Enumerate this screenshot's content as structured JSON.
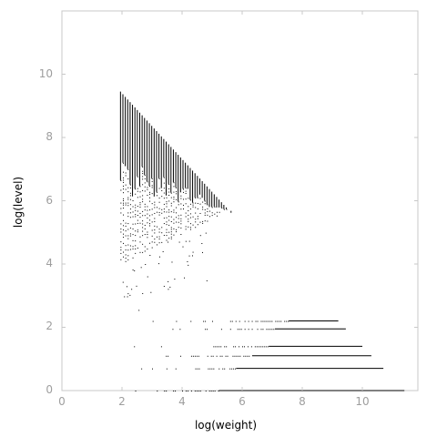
{
  "chart_data": {
    "type": "scatter",
    "title": "",
    "xlabel": "log(weight)",
    "ylabel": "log(level)",
    "xlim": [
      0,
      11.8
    ],
    "ylim": [
      0,
      12
    ],
    "xticks": [
      "0",
      "2",
      "4",
      "6",
      "8",
      "10"
    ],
    "yticks": [
      "0",
      "2",
      "4",
      "6",
      "8",
      "10"
    ],
    "grid": false,
    "legend": "none",
    "point_color": "#000000",
    "frame_color": "#c8c8c8",
    "tick_label_color": "#9e9e9e",
    "triangle_region": {
      "x_start": 1.95,
      "x_end": 5.65,
      "top_start": 9.45,
      "top_end": 5.6,
      "bottom_start": 4.0,
      "bottom_end": 5.75,
      "column_spacing": 0.08
    },
    "horizontal_bands": [
      {
        "y": 2.2,
        "x_start": 2.6,
        "x_end": 9.2
      },
      {
        "y": 1.95,
        "x_start": 2.3,
        "x_end": 9.45
      },
      {
        "y": 1.4,
        "x_start": 2.4,
        "x_end": 10.0
      },
      {
        "y": 1.1,
        "x_start": 2.2,
        "x_end": 10.3
      },
      {
        "y": 0.7,
        "x_start": 2.1,
        "x_end": 10.7
      },
      {
        "y": 0.0,
        "x_start": 1.9,
        "x_end": 11.4
      }
    ]
  }
}
